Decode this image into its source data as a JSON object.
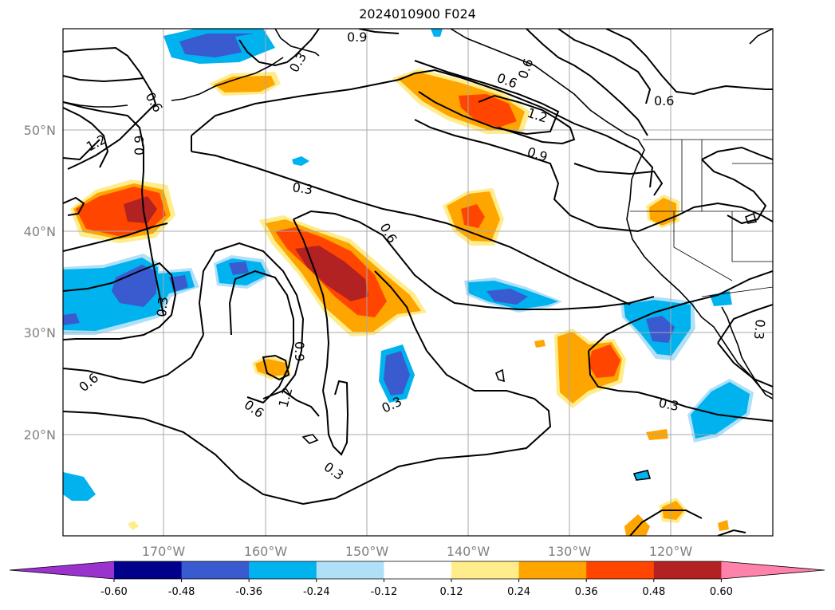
{
  "title": "2024010900 F024",
  "lat_labels": [
    "50°N",
    "40°N",
    "30°N",
    "20°N"
  ],
  "lon_labels": [
    "170°W",
    "160°W",
    "150°W",
    "140°W",
    "130°W",
    "120°W"
  ],
  "contour_labels": [
    "0.9",
    "0.3",
    "0.6",
    "0.6",
    "0.6",
    "0.6",
    "1.2",
    "0.9",
    "1.2",
    "0.9",
    "0.3",
    "0.6",
    "0.3",
    "0.3",
    "0.6",
    "0.9",
    "1.2",
    "0.6",
    "0.3",
    "0.3",
    "0.3"
  ],
  "colorbar": {
    "ticks": [
      "-0.60",
      "-0.48",
      "-0.36",
      "-0.24",
      "-0.12",
      "0.12",
      "0.24",
      "0.36",
      "0.48",
      "0.60"
    ],
    "colors": [
      "#9a32cd",
      "#00008b",
      "#3a5ad0",
      "#00b2ee",
      "#afe0f8",
      "#ffffff",
      "#ffec8b",
      "#ffa500",
      "#ff4500",
      "#b22222",
      "#ff82ab"
    ]
  }
}
